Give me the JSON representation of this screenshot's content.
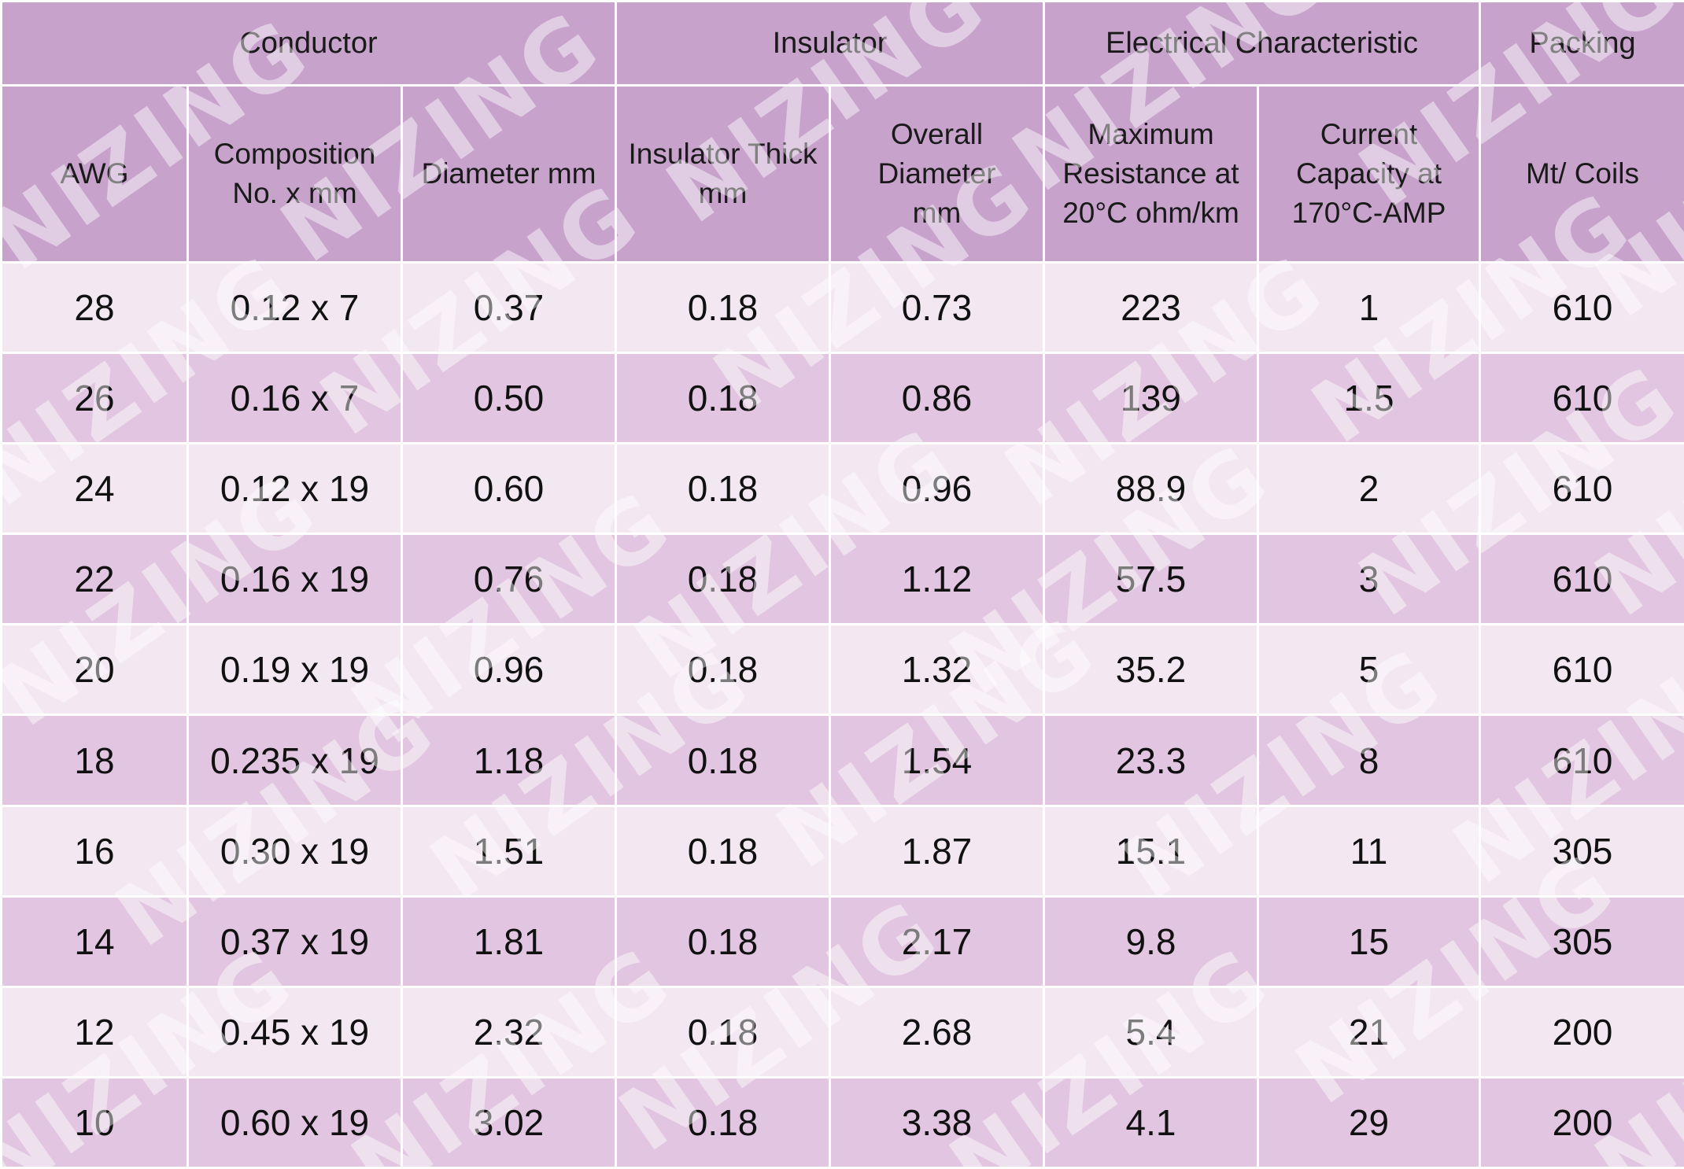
{
  "groups": [
    "Conductor",
    "Insulator",
    "Electrical Characteristic",
    "Packing"
  ],
  "columns": [
    [
      "AWG"
    ],
    [
      "Composition",
      "No. x mm"
    ],
    [
      "Diameter mm"
    ],
    [
      "Insulator Thick",
      "mm"
    ],
    [
      "Overall",
      "Diameter",
      "mm"
    ],
    [
      "Maximum",
      "Resistance at",
      "20°C ohm/km"
    ],
    [
      "Current",
      "Capacity at",
      "170°C-AMP"
    ],
    [
      "Mt/ Coils"
    ]
  ],
  "rows": [
    [
      "28",
      "0.12 x 7",
      "0.37",
      "0.18",
      "0.73",
      "223",
      "1",
      "610"
    ],
    [
      "26",
      "0.16 x 7",
      "0.50",
      "0.18",
      "0.86",
      "139",
      "1.5",
      "610"
    ],
    [
      "24",
      "0.12 x 19",
      "0.60",
      "0.18",
      "0.96",
      "88.9",
      "2",
      "610"
    ],
    [
      "22",
      "0.16 x 19",
      "0.76",
      "0.18",
      "1.12",
      "57.5",
      "3",
      "610"
    ],
    [
      "20",
      "0.19 x 19",
      "0.96",
      "0.18",
      "1.32",
      "35.2",
      "5",
      "610"
    ],
    [
      "18",
      "0.235 x 19",
      "1.18",
      "0.18",
      "1.54",
      "23.3",
      "8",
      "610"
    ],
    [
      "16",
      "0.30 x 19",
      "1.51",
      "0.18",
      "1.87",
      "15.1",
      "11",
      "305"
    ],
    [
      "14",
      "0.37 x 19",
      "1.81",
      "0.18",
      "2.17",
      "9.8",
      "15",
      "305"
    ],
    [
      "12",
      "0.45 x 19",
      "2.32",
      "0.18",
      "2.68",
      "5.4",
      "21",
      "200"
    ],
    [
      "10",
      "0.60 x 19",
      "3.02",
      "0.18",
      "3.38",
      "4.1",
      "29",
      "200"
    ]
  ],
  "watermark": "NIZING",
  "colors": {
    "header": "#c7a3cc",
    "row_light": "#f3e8f2",
    "row_dark": "#e2c6e1",
    "grid": "#ffffff"
  }
}
